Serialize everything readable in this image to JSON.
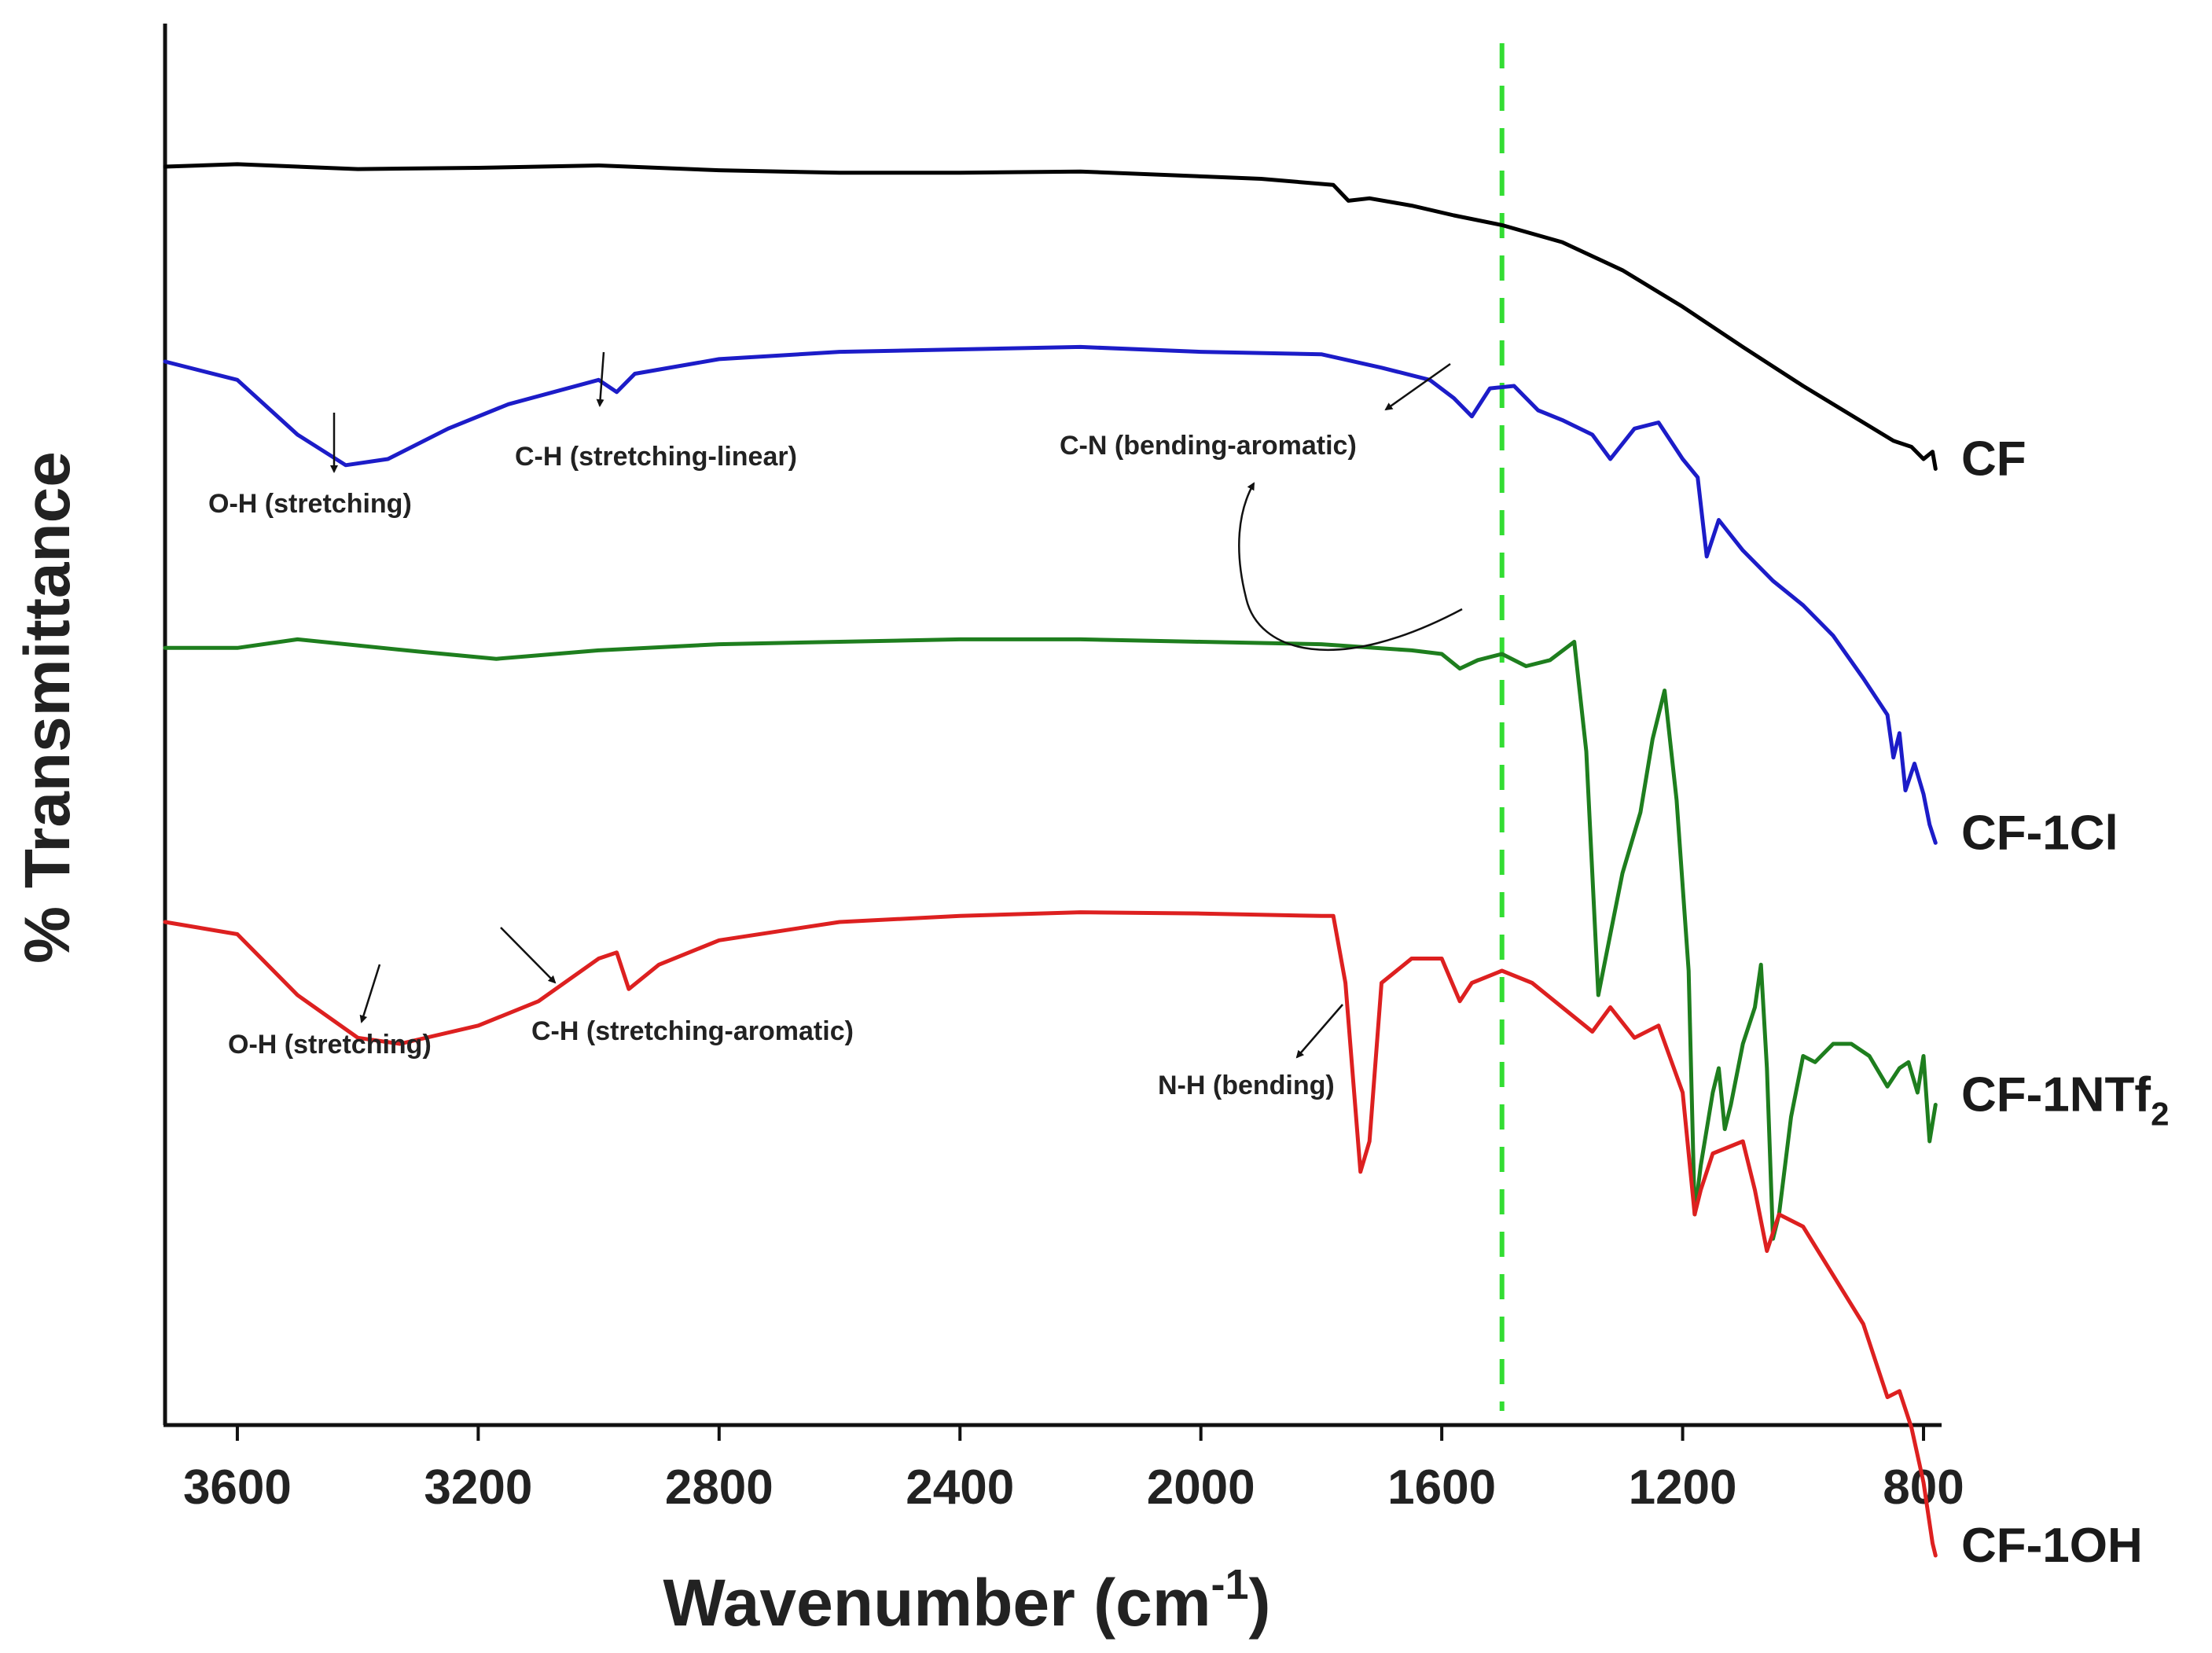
{
  "chart_data": {
    "type": "line",
    "title": "",
    "xlabel": "Wavenumber (cm",
    "xlabel_sup": "-1",
    "xlabel_tail": ")",
    "ylabel": "% Transmittance",
    "xlim": [
      3720,
      770
    ],
    "x_ticks": [
      3600,
      3200,
      2800,
      2400,
      2000,
      1600,
      1200,
      800
    ],
    "x_tick_labels": [
      "3600",
      "3200",
      "2800",
      "2400",
      "2000",
      "1600",
      "1200",
      "800"
    ],
    "y_ticks_shown": false,
    "grid": false,
    "reference_line": {
      "x": 1500,
      "color": "#33dd33",
      "style": "dashed"
    },
    "series": [
      {
        "name": "CF",
        "label": "CF",
        "label_sub": "",
        "color": "#000000",
        "points": [
          [
            3720,
            96
          ],
          [
            3600,
            96.2
          ],
          [
            3400,
            95.8
          ],
          [
            3200,
            95.9
          ],
          [
            3000,
            96.1
          ],
          [
            2800,
            95.7
          ],
          [
            2600,
            95.5
          ],
          [
            2400,
            95.5
          ],
          [
            2200,
            95.6
          ],
          [
            2000,
            95.2
          ],
          [
            1900,
            95
          ],
          [
            1780,
            94.5
          ],
          [
            1755,
            93.2
          ],
          [
            1720,
            93.4
          ],
          [
            1650,
            92.8
          ],
          [
            1580,
            92
          ],
          [
            1500,
            91.2
          ],
          [
            1400,
            89.8
          ],
          [
            1300,
            87.5
          ],
          [
            1200,
            84.5
          ],
          [
            1100,
            81.2
          ],
          [
            1000,
            78
          ],
          [
            900,
            75
          ],
          [
            850,
            73.5
          ],
          [
            820,
            73
          ],
          [
            800,
            72
          ],
          [
            785,
            72.6
          ],
          [
            780,
            71.2
          ]
        ]
      },
      {
        "name": "CF-1Cl",
        "label": "CF-1Cl",
        "label_sub": "",
        "color": "#1c1cc8",
        "points": [
          [
            3720,
            80
          ],
          [
            3600,
            78.5
          ],
          [
            3500,
            74
          ],
          [
            3420,
            71.5
          ],
          [
            3350,
            72
          ],
          [
            3250,
            74.5
          ],
          [
            3150,
            76.5
          ],
          [
            3000,
            78.5
          ],
          [
            2970,
            77.5
          ],
          [
            2940,
            79
          ],
          [
            2800,
            80.2
          ],
          [
            2600,
            80.8
          ],
          [
            2400,
            81
          ],
          [
            2200,
            81.2
          ],
          [
            2000,
            80.8
          ],
          [
            1800,
            80.6
          ],
          [
            1700,
            79.5
          ],
          [
            1620,
            78.5
          ],
          [
            1580,
            77
          ],
          [
            1550,
            75.5
          ],
          [
            1520,
            77.8
          ],
          [
            1480,
            78
          ],
          [
            1440,
            76
          ],
          [
            1400,
            75.2
          ],
          [
            1350,
            74
          ],
          [
            1320,
            72
          ],
          [
            1280,
            74.5
          ],
          [
            1240,
            75
          ],
          [
            1200,
            72
          ],
          [
            1175,
            70.5
          ],
          [
            1160,
            64
          ],
          [
            1140,
            67
          ],
          [
            1100,
            64.5
          ],
          [
            1050,
            62
          ],
          [
            1000,
            60
          ],
          [
            950,
            57.5
          ],
          [
            900,
            54
          ],
          [
            860,
            51
          ],
          [
            850,
            47.5
          ],
          [
            840,
            49.5
          ],
          [
            830,
            44.8
          ],
          [
            815,
            47
          ],
          [
            800,
            44.5
          ],
          [
            790,
            42
          ],
          [
            780,
            40.5
          ]
        ]
      },
      {
        "name": "CF-1NTf2",
        "label": "CF-1NTf",
        "label_sub": "2",
        "color": "#1e7e1e",
        "points": [
          [
            3720,
            56.5
          ],
          [
            3600,
            56.5
          ],
          [
            3500,
            57.2
          ],
          [
            3300,
            56.2
          ],
          [
            3170,
            55.6
          ],
          [
            3000,
            56.3
          ],
          [
            2800,
            56.8
          ],
          [
            2600,
            57
          ],
          [
            2400,
            57.2
          ],
          [
            2200,
            57.2
          ],
          [
            2000,
            57
          ],
          [
            1800,
            56.8
          ],
          [
            1650,
            56.3
          ],
          [
            1600,
            56
          ],
          [
            1570,
            54.8
          ],
          [
            1540,
            55.5
          ],
          [
            1500,
            56
          ],
          [
            1460,
            55
          ],
          [
            1420,
            55.5
          ],
          [
            1380,
            57
          ],
          [
            1360,
            48
          ],
          [
            1340,
            28
          ],
          [
            1320,
            33
          ],
          [
            1300,
            38
          ],
          [
            1270,
            43
          ],
          [
            1250,
            49
          ],
          [
            1230,
            53
          ],
          [
            1210,
            44
          ],
          [
            1190,
            30
          ],
          [
            1180,
            10
          ],
          [
            1170,
            14
          ],
          [
            1150,
            20
          ],
          [
            1140,
            22
          ],
          [
            1130,
            17
          ],
          [
            1120,
            19
          ],
          [
            1100,
            24
          ],
          [
            1080,
            27
          ],
          [
            1070,
            30.5
          ],
          [
            1060,
            22
          ],
          [
            1050,
            8
          ],
          [
            1040,
            10
          ],
          [
            1020,
            18
          ],
          [
            1000,
            23
          ],
          [
            980,
            22.5
          ],
          [
            950,
            24
          ],
          [
            920,
            24
          ],
          [
            890,
            23
          ],
          [
            860,
            20.5
          ],
          [
            840,
            22
          ],
          [
            825,
            22.5
          ],
          [
            810,
            20
          ],
          [
            800,
            23
          ],
          [
            790,
            16
          ],
          [
            780,
            19
          ]
        ]
      },
      {
        "name": "CF-1OH",
        "label": "CF-1OH",
        "label_sub": "",
        "color": "#dd2020",
        "points": [
          [
            3720,
            34
          ],
          [
            3600,
            33
          ],
          [
            3500,
            28
          ],
          [
            3400,
            24.5
          ],
          [
            3330,
            24
          ],
          [
            3200,
            25.5
          ],
          [
            3100,
            27.5
          ],
          [
            3000,
            31
          ],
          [
            2970,
            31.5
          ],
          [
            2950,
            28.5
          ],
          [
            2900,
            30.5
          ],
          [
            2800,
            32.5
          ],
          [
            2600,
            34
          ],
          [
            2400,
            34.5
          ],
          [
            2200,
            34.8
          ],
          [
            2000,
            34.7
          ],
          [
            1800,
            34.5
          ],
          [
            1780,
            34.5
          ],
          [
            1760,
            29
          ],
          [
            1735,
            13.5
          ],
          [
            1720,
            16
          ],
          [
            1700,
            29
          ],
          [
            1650,
            31
          ],
          [
            1600,
            31
          ],
          [
            1570,
            27.5
          ],
          [
            1550,
            29
          ],
          [
            1500,
            30
          ],
          [
            1450,
            29
          ],
          [
            1400,
            27
          ],
          [
            1350,
            25
          ],
          [
            1320,
            27
          ],
          [
            1280,
            24.5
          ],
          [
            1240,
            25.5
          ],
          [
            1200,
            20
          ],
          [
            1180,
            10
          ],
          [
            1170,
            12
          ],
          [
            1150,
            15
          ],
          [
            1100,
            16
          ],
          [
            1080,
            12
          ],
          [
            1060,
            7
          ],
          [
            1040,
            10
          ],
          [
            1000,
            9
          ],
          [
            950,
            5
          ],
          [
            900,
            1
          ],
          [
            860,
            -5
          ],
          [
            840,
            -4.5
          ],
          [
            820,
            -7.5
          ],
          [
            800,
            -12
          ],
          [
            785,
            -17
          ],
          [
            780,
            -18
          ]
        ]
      }
    ],
    "annotations": [
      {
        "text": "O-H (stretching)",
        "series": "CF-1Cl"
      },
      {
        "text": "C-H (stretching-linear)",
        "series": "CF-1Cl"
      },
      {
        "text": "C-N (bending-aromatic)",
        "series": "CF-1Cl"
      },
      {
        "text": "O-H (stretching)",
        "series": "CF-1OH"
      },
      {
        "text": "C-H (stretching-aromatic)",
        "series": "CF-1OH"
      },
      {
        "text": "N-H (bending)",
        "series": "CF-1OH"
      }
    ]
  }
}
